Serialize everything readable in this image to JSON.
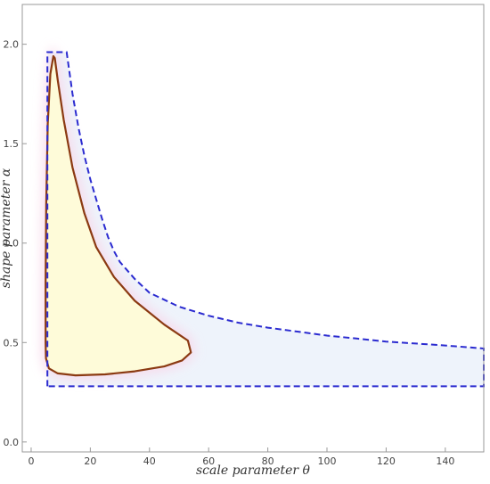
{
  "chart_data": {
    "type": "area",
    "title": "",
    "xlabel": "scale parameter θ",
    "ylabel": "shape parameter α",
    "xlim": [
      -3,
      153
    ],
    "ylim": [
      -0.05,
      2.2
    ],
    "x_ticks": [
      0,
      20,
      40,
      60,
      80,
      100,
      120,
      140
    ],
    "y_ticks": [
      0.0,
      0.5,
      1.0,
      1.5,
      2.0
    ],
    "y_tick_labels": [
      "0.0",
      "0.5",
      "1.0",
      "1.5",
      "2.0"
    ],
    "grid": false,
    "legend": "none",
    "series": [
      {
        "role": "outer-region-dashed-boundary",
        "style": "dashed",
        "color": "#2b2bd0",
        "fill": "#eef3fb",
        "points": [
          [
            5.5,
            0.28
          ],
          [
            5.5,
            1.96
          ],
          [
            12.0,
            1.96
          ],
          [
            14,
            1.75
          ],
          [
            16,
            1.58
          ],
          [
            18,
            1.44
          ],
          [
            20,
            1.32
          ],
          [
            22,
            1.22
          ],
          [
            24,
            1.12
          ],
          [
            26,
            1.03
          ],
          [
            28,
            0.96
          ],
          [
            30,
            0.905
          ],
          [
            35,
            0.82
          ],
          [
            40,
            0.75
          ],
          [
            50,
            0.68
          ],
          [
            60,
            0.635
          ],
          [
            70,
            0.6
          ],
          [
            80,
            0.575
          ],
          [
            90,
            0.555
          ],
          [
            100,
            0.535
          ],
          [
            110,
            0.52
          ],
          [
            120,
            0.505
          ],
          [
            130,
            0.495
          ],
          [
            140,
            0.485
          ],
          [
            153,
            0.47
          ],
          [
            153,
            0.28
          ],
          [
            5.5,
            0.28
          ]
        ]
      },
      {
        "role": "inner-region-solid-boundary",
        "style": "solid",
        "color": "#8b3a12",
        "fill": "#fefbd9",
        "points": [
          [
            7.5,
            1.94
          ],
          [
            6.5,
            1.85
          ],
          [
            5.6,
            1.6
          ],
          [
            5.1,
            1.2
          ],
          [
            4.9,
            0.8
          ],
          [
            4.9,
            0.5
          ],
          [
            5.0,
            0.42
          ],
          [
            6.0,
            0.37
          ],
          [
            9.0,
            0.345
          ],
          [
            15.0,
            0.335
          ],
          [
            25.0,
            0.34
          ],
          [
            35.0,
            0.355
          ],
          [
            45.0,
            0.38
          ],
          [
            51.0,
            0.41
          ],
          [
            54.0,
            0.45
          ],
          [
            53.0,
            0.51
          ],
          [
            45.0,
            0.59
          ],
          [
            35.0,
            0.71
          ],
          [
            28.0,
            0.83
          ],
          [
            22.0,
            0.98
          ],
          [
            18.0,
            1.15
          ],
          [
            14.0,
            1.38
          ],
          [
            11.0,
            1.62
          ],
          [
            9.0,
            1.82
          ],
          [
            8.0,
            1.93
          ]
        ]
      }
    ],
    "colors": {
      "frame": "#999999",
      "outer_fill": "#eef3fb",
      "inner_fill": "#fefbd9",
      "dashed": "#2b2bd0",
      "solid": "#8b3a12",
      "glow": "#f8d8ea"
    }
  }
}
